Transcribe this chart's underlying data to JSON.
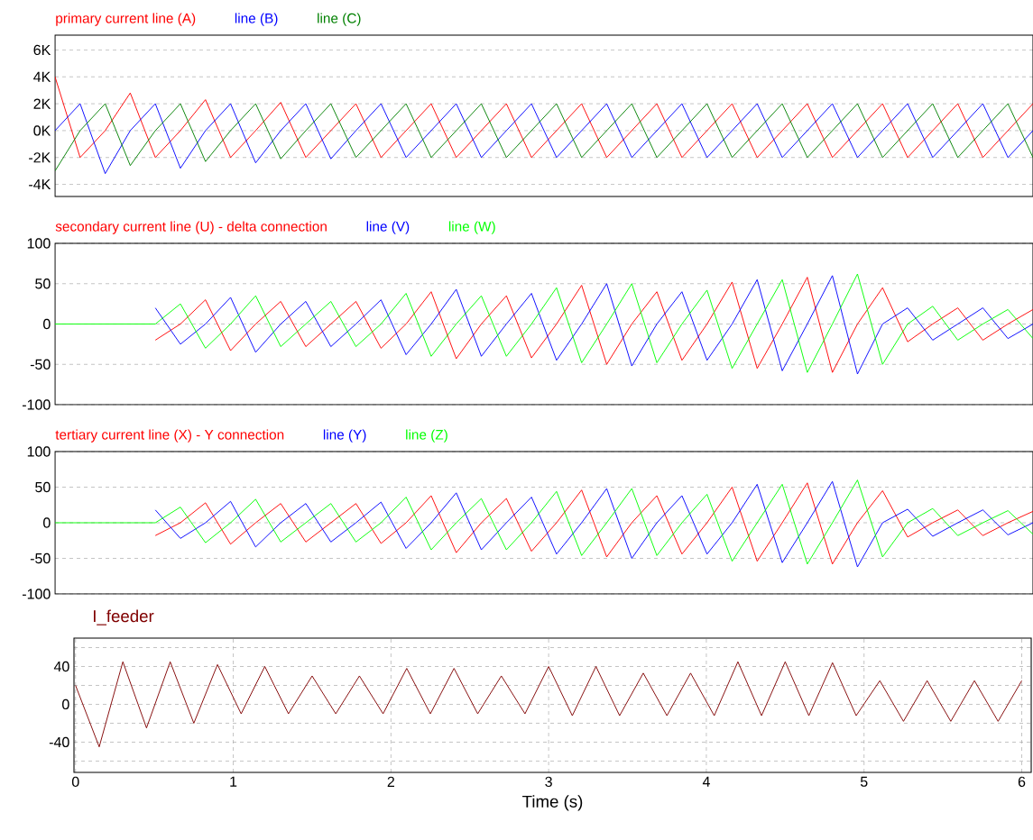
{
  "chart_data": [
    {
      "type": "line",
      "categories": [
        null,
        null,
        null,
        null,
        null,
        null,
        null,
        null,
        null,
        null,
        null,
        null,
        null,
        null,
        null,
        null,
        null,
        null,
        null,
        null,
        null,
        null,
        null,
        null,
        null,
        null,
        null,
        null,
        null,
        null,
        null,
        null,
        null,
        null,
        null,
        null,
        null,
        null,
        null,
        null
      ],
      "ylim": [
        -4900,
        7100
      ],
      "yticks": [
        {
          "value": -4000,
          "label": "-4K"
        },
        {
          "value": -2000,
          "label": "-2K"
        },
        {
          "value": 0,
          "label": "0K"
        },
        {
          "value": 2000,
          "label": "2K"
        },
        {
          "value": 4000,
          "label": "4K"
        },
        {
          "value": 6000,
          "label": "6K"
        }
      ],
      "tick_labels": "y",
      "grid": "y",
      "series": [
        {
          "name": "primary current line (A)",
          "color": "#ff0000",
          "values": [
            4000,
            -2000,
            0,
            2800,
            -2000,
            0,
            2300,
            -2000,
            0,
            2100,
            -2000,
            0,
            2000,
            -2000,
            0,
            2000,
            -2000,
            0,
            2000,
            -2000,
            0,
            2000,
            -2000,
            0,
            2000,
            -2000,
            0,
            2000,
            -2000,
            0,
            2000,
            -2000,
            0,
            2000,
            -2000,
            0,
            2000,
            -2000,
            0,
            2000
          ]
        },
        {
          "name": "line (B)",
          "color": "#0000ff",
          "values": [
            0,
            2000,
            -3200,
            0,
            2000,
            -2800,
            0,
            2000,
            -2400,
            0,
            2000,
            -2100,
            0,
            2000,
            -2000,
            0,
            2000,
            -2000,
            0,
            2000,
            -2000,
            0,
            2000,
            -2000,
            0,
            2000,
            -2000,
            0,
            2000,
            -2000,
            0,
            2000,
            -2000,
            0,
            2000,
            -2000,
            0,
            2000,
            -2000,
            0
          ]
        },
        {
          "name": "line (C)",
          "color": "#008000",
          "values": [
            -3000,
            0,
            2000,
            -2600,
            0,
            2000,
            -2300,
            0,
            2000,
            -2100,
            0,
            2000,
            -2000,
            0,
            2000,
            -2000,
            0,
            2000,
            -2000,
            0,
            2000,
            -2000,
            0,
            2000,
            -2000,
            0,
            2000,
            -2000,
            0,
            2000,
            -2000,
            0,
            2000,
            -2000,
            0,
            2000,
            -2000,
            0,
            2000,
            -2000
          ]
        }
      ]
    },
    {
      "type": "line",
      "categories": [
        null,
        null,
        null,
        null,
        null,
        null,
        null,
        null,
        null,
        null,
        null,
        null,
        null,
        null,
        null,
        null,
        null,
        null,
        null,
        null,
        null,
        null,
        null,
        null,
        null,
        null,
        null,
        null,
        null,
        null,
        null,
        null,
        null,
        null,
        null,
        null,
        null,
        null,
        null,
        null
      ],
      "ylim": [
        -100,
        100
      ],
      "yticks": [
        -100,
        -50,
        0,
        50,
        100
      ],
      "tick_labels": "y",
      "grid": "y",
      "series": [
        {
          "name": "secondary current line (U) - delta connection",
          "color": "#ff0000",
          "values": [
            null,
            null,
            null,
            null,
            -20,
            0,
            30,
            -33,
            0,
            28,
            -28,
            0,
            28,
            -30,
            0,
            40,
            -43,
            0,
            35,
            -42,
            0,
            48,
            -50,
            0,
            40,
            -45,
            0,
            52,
            -55,
            0,
            58,
            -60,
            0,
            45,
            -22,
            0,
            20,
            -20,
            0,
            18
          ]
        },
        {
          "name": "line (V)",
          "color": "#0000ff",
          "values": [
            null,
            null,
            null,
            null,
            20,
            -25,
            0,
            33,
            -35,
            0,
            28,
            -28,
            0,
            30,
            -38,
            0,
            43,
            -40,
            0,
            38,
            -45,
            0,
            50,
            -52,
            0,
            40,
            -45,
            0,
            55,
            -58,
            0,
            60,
            -62,
            0,
            20,
            -20,
            0,
            20,
            -18,
            0
          ]
        },
        {
          "name": "line (W)",
          "color": "#00ff00",
          "values": [
            0,
            0,
            0,
            0,
            0,
            25,
            -30,
            0,
            35,
            -28,
            0,
            28,
            -28,
            0,
            38,
            -40,
            0,
            35,
            -40,
            0,
            45,
            -48,
            0,
            50,
            -48,
            0,
            42,
            -55,
            0,
            55,
            -60,
            0,
            62,
            -50,
            0,
            22,
            -20,
            0,
            18,
            -18
          ]
        }
      ]
    },
    {
      "type": "line",
      "categories": [
        null,
        null,
        null,
        null,
        null,
        null,
        null,
        null,
        null,
        null,
        null,
        null,
        null,
        null,
        null,
        null,
        null,
        null,
        null,
        null,
        null,
        null,
        null,
        null,
        null,
        null,
        null,
        null,
        null,
        null,
        null,
        null,
        null,
        null,
        null,
        null,
        null,
        null,
        null,
        null
      ],
      "ylim": [
        -100,
        100
      ],
      "yticks": [
        -100,
        -50,
        0,
        50,
        100
      ],
      "tick_labels": "y",
      "grid": "y",
      "series": [
        {
          "name": "tertiary current line (X) - Y connection",
          "color": "#ff0000",
          "values": [
            null,
            null,
            null,
            null,
            -18,
            0,
            28,
            -30,
            0,
            27,
            -27,
            0,
            27,
            -29,
            0,
            38,
            -42,
            0,
            34,
            -40,
            0,
            46,
            -48,
            0,
            38,
            -44,
            0,
            50,
            -54,
            0,
            56,
            -58,
            0,
            45,
            -20,
            0,
            18,
            -18,
            0,
            16
          ]
        },
        {
          "name": "line (Y)",
          "color": "#0000ff",
          "values": [
            null,
            null,
            null,
            null,
            18,
            -22,
            0,
            30,
            -34,
            0,
            27,
            -27,
            0,
            29,
            -36,
            0,
            42,
            -38,
            0,
            36,
            -44,
            0,
            48,
            -50,
            0,
            38,
            -44,
            0,
            54,
            -56,
            0,
            58,
            -62,
            0,
            19,
            -19,
            0,
            18,
            -17,
            0
          ]
        },
        {
          "name": "line (Z)",
          "color": "#00ff00",
          "values": [
            0,
            0,
            0,
            0,
            0,
            22,
            -28,
            0,
            33,
            -27,
            0,
            27,
            -27,
            0,
            36,
            -38,
            0,
            34,
            -38,
            0,
            44,
            -46,
            0,
            48,
            -46,
            0,
            40,
            -54,
            0,
            54,
            -58,
            0,
            60,
            -48,
            0,
            20,
            -18,
            0,
            17,
            -16
          ]
        }
      ]
    },
    {
      "type": "line",
      "xlim": [
        -0.01,
        6.06
      ],
      "ylim": [
        -72,
        70
      ],
      "xticks": [
        0,
        1,
        2,
        3,
        4,
        5,
        6
      ],
      "yticks": [
        {
          "value": -60,
          "label": null
        },
        -40,
        {
          "value": -20,
          "label": null
        },
        0,
        {
          "value": 20,
          "label": null
        },
        40,
        {
          "value": 60,
          "label": null
        }
      ],
      "xlabel": "Time (s)",
      "grid": true,
      "x": [
        0,
        0.15,
        0.3,
        0.45,
        0.6,
        0.75,
        0.9,
        1.05,
        1.2,
        1.35,
        1.5,
        1.65,
        1.8,
        1.95,
        2.1,
        2.25,
        2.4,
        2.55,
        2.7,
        2.85,
        3,
        3.15,
        3.3,
        3.45,
        3.6,
        3.75,
        3.9,
        4.05,
        4.2,
        4.35,
        4.5,
        4.65,
        4.8,
        4.95,
        5.1,
        5.25,
        5.4,
        5.55,
        5.7,
        5.85,
        6
      ],
      "series": [
        {
          "name": "I_feeder",
          "color": "#800000",
          "values": [
            20,
            -45,
            45,
            -25,
            45,
            -20,
            42,
            -10,
            40,
            -10,
            30,
            -10,
            30,
            -10,
            38,
            -10,
            38,
            -10,
            30,
            -10,
            40,
            -12,
            40,
            -12,
            33,
            -12,
            33,
            -12,
            45,
            -12,
            45,
            -12,
            44,
            -12,
            25,
            -18,
            25,
            -18,
            25,
            -18,
            25
          ]
        }
      ]
    }
  ]
}
